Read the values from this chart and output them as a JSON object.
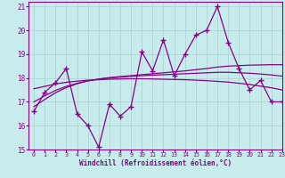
{
  "xlabel": "Windchill (Refroidissement éolien,°C)",
  "xlim": [
    -0.5,
    23
  ],
  "ylim": [
    15,
    21.2
  ],
  "yticks": [
    15,
    16,
    17,
    18,
    19,
    20,
    21
  ],
  "xticks": [
    0,
    1,
    2,
    3,
    4,
    5,
    6,
    7,
    8,
    9,
    10,
    11,
    12,
    13,
    14,
    15,
    16,
    17,
    18,
    19,
    20,
    21,
    22,
    23
  ],
  "bg_color": "#c8ecec",
  "grid_color": "#b0d8d8",
  "line_color": "#880088",
  "data_x": [
    0,
    1,
    2,
    3,
    4,
    5,
    6,
    7,
    8,
    9,
    10,
    11,
    12,
    13,
    14,
    15,
    16,
    17,
    18,
    19,
    20,
    21,
    22,
    23
  ],
  "data_y": [
    16.6,
    17.4,
    17.8,
    18.4,
    16.5,
    16.0,
    15.1,
    16.9,
    16.4,
    16.8,
    19.1,
    18.3,
    19.6,
    18.1,
    19.0,
    19.8,
    20.0,
    21.0,
    19.5,
    18.4,
    17.5,
    17.9,
    17.0,
    17.0
  ],
  "trend1_y": [
    17.55,
    17.65,
    17.75,
    17.82,
    17.87,
    17.91,
    17.93,
    17.95,
    17.96,
    17.97,
    17.97,
    17.96,
    17.95,
    17.94,
    17.93,
    17.91,
    17.89,
    17.86,
    17.83,
    17.78,
    17.73,
    17.66,
    17.59,
    17.5
  ],
  "trend2_y": [
    17.0,
    17.25,
    17.48,
    17.65,
    17.78,
    17.88,
    17.95,
    18.0,
    18.04,
    18.07,
    18.1,
    18.12,
    18.14,
    18.16,
    18.18,
    18.2,
    18.22,
    18.24,
    18.24,
    18.22,
    18.2,
    18.17,
    18.13,
    18.08
  ],
  "trend3_y": [
    16.8,
    17.1,
    17.38,
    17.6,
    17.76,
    17.88,
    17.96,
    18.02,
    18.06,
    18.1,
    18.14,
    18.18,
    18.22,
    18.26,
    18.3,
    18.35,
    18.4,
    18.46,
    18.5,
    18.52,
    18.54,
    18.55,
    18.56,
    18.56
  ]
}
